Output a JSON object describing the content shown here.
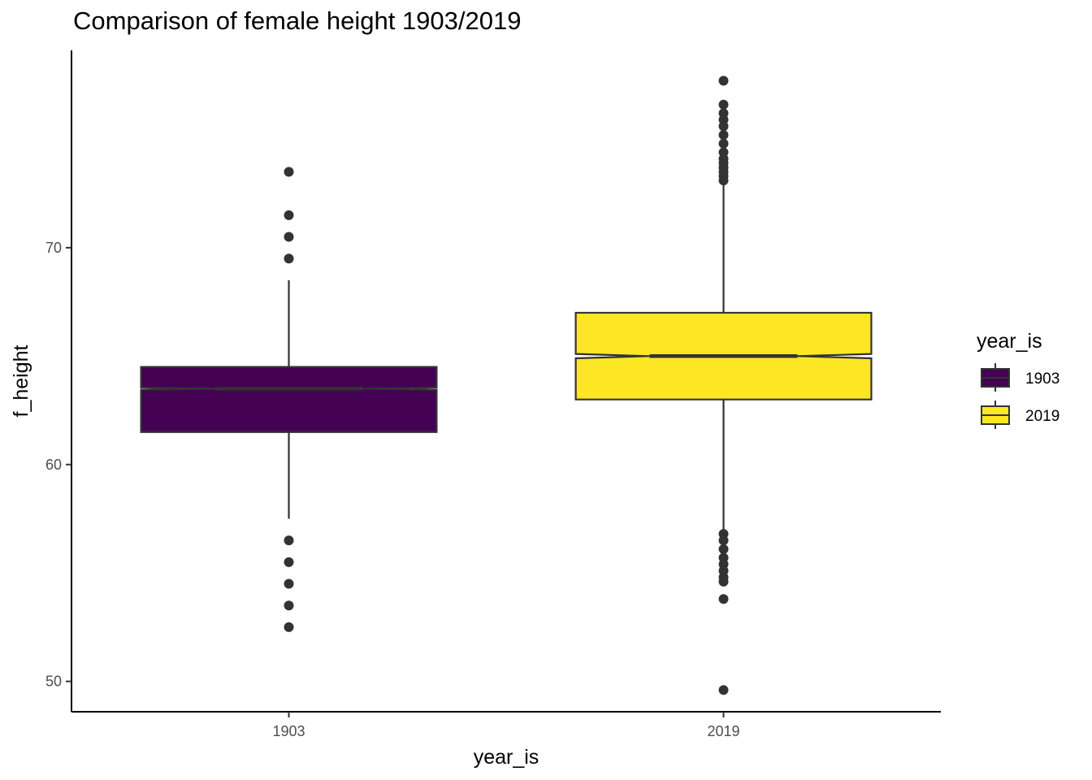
{
  "chart_data": {
    "type": "boxplot",
    "title": "Comparison of female height 1903/2019",
    "xlabel": "year_is",
    "ylabel": "f_height",
    "ylim": [
      48.6,
      79.1
    ],
    "yticks": [
      50,
      60,
      70
    ],
    "grid": false,
    "notched": true,
    "legend": {
      "title": "year_is",
      "placement": "right",
      "entries": [
        "1903",
        "2019"
      ]
    },
    "categories": [
      "1903",
      "2019"
    ],
    "boxes": [
      {
        "name": "1903",
        "color": "#440154",
        "q1": 61.5,
        "median": 63.5,
        "q3": 64.5,
        "whisker_low": 57.5,
        "whisker_high": 68.5,
        "notch_low": 63.45,
        "notch_high": 63.55,
        "outliers": [
          73.5,
          71.5,
          70.5,
          69.5,
          56.5,
          55.5,
          54.5,
          53.5,
          52.5
        ]
      },
      {
        "name": "2019",
        "color": "#FDE725",
        "q1": 63.0,
        "median": 65.0,
        "q3": 67.0,
        "whisker_low": 57.0,
        "whisker_high": 73.0,
        "notch_low": 64.9,
        "notch_high": 65.1,
        "outliers": [
          77.7,
          76.6,
          76.2,
          75.9,
          75.6,
          75.2,
          74.8,
          74.4,
          74.1,
          73.9,
          73.7,
          73.5,
          73.3,
          73.1,
          56.8,
          56.5,
          56.1,
          55.7,
          55.4,
          55.1,
          54.8,
          54.6,
          53.8,
          49.6
        ]
      }
    ]
  }
}
